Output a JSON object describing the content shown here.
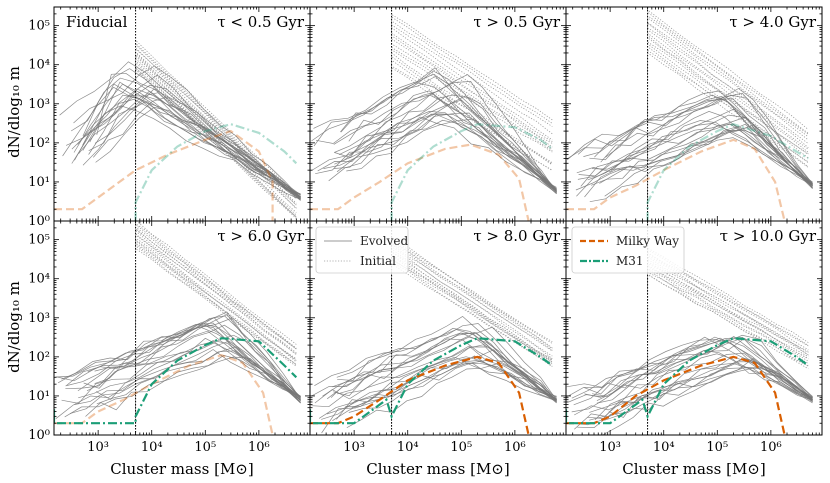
{
  "chart_data": {
    "type": "line",
    "layout": "2x3 grid of log-log panels",
    "xlabel": "Cluster mass [M⊙]",
    "ylabel": "dN/dlog₁₀ m",
    "xlim": [
      150,
      9000000
    ],
    "ylim": [
      1,
      300000
    ],
    "x_ticks": [
      {
        "v": 1000,
        "label": "10³"
      },
      {
        "v": 10000,
        "label": "10⁴"
      },
      {
        "v": 100000,
        "label": "10⁵"
      },
      {
        "v": 1000000,
        "label": "10⁶"
      }
    ],
    "y_ticks": [
      {
        "v": 1,
        "label": "10⁰"
      },
      {
        "v": 10,
        "label": "10¹"
      },
      {
        "v": 100,
        "label": "10²"
      },
      {
        "v": 1000,
        "label": "10³"
      },
      {
        "v": 10000,
        "label": "10⁴"
      },
      {
        "v": 100000,
        "label": "10⁵"
      }
    ],
    "mass_cut": 5000,
    "fiducial_label": "Fiducial",
    "colors": {
      "evolved": "#777777",
      "initial": "#9a9a9a",
      "mw": "#d95f02",
      "m31": "#1b9e77",
      "frame": "#000000"
    },
    "legends": [
      {
        "panel": 4,
        "entries": [
          {
            "label": "Evolved",
            "style": "evolved"
          },
          {
            "label": "Initial",
            "style": "initial"
          }
        ]
      },
      {
        "panel": 5,
        "entries": [
          {
            "label": "Milky Way",
            "style": "mw"
          },
          {
            "label": "M31",
            "style": "m31"
          }
        ]
      }
    ],
    "panels": [
      {
        "label": "τ < 0.5 Gyr",
        "faded": true,
        "evolved_peak": [
          5000,
          4000
        ],
        "evolved_spread": 0.55,
        "evolved_tail": 4,
        "evolved_low": 150,
        "initial_top": 40000,
        "initial_bottom": 7000,
        "initial_end": [
          5000000,
          5
        ],
        "mw": [
          [
            150,
            2
          ],
          [
            500,
            2
          ],
          [
            1000,
            4
          ],
          [
            3000,
            12
          ],
          [
            5000,
            20
          ],
          [
            20000,
            50
          ],
          [
            100000,
            120
          ],
          [
            300000,
            200
          ],
          [
            1000000,
            60
          ],
          [
            1800000,
            10
          ],
          [
            1800000,
            1
          ]
        ],
        "m31": [
          [
            5000,
            1
          ],
          [
            5000,
            3
          ],
          [
            10000,
            20
          ],
          [
            30000,
            80
          ],
          [
            100000,
            200
          ],
          [
            300000,
            300
          ],
          [
            1000000,
            180
          ],
          [
            3000000,
            60
          ],
          [
            5000000,
            30
          ]
        ]
      },
      {
        "label": "τ > 0.5 Gyr",
        "faded": true,
        "evolved_peak": [
          60000,
          2000
        ],
        "evolved_spread": 0.6,
        "evolved_tail": 6,
        "evolved_low": 150,
        "initial_top": 200000,
        "initial_bottom": 8000,
        "initial_end": [
          5000000,
          300
        ],
        "mw": [
          [
            150,
            2
          ],
          [
            500,
            2
          ],
          [
            1000,
            4
          ],
          [
            3000,
            10
          ],
          [
            10000,
            30
          ],
          [
            50000,
            70
          ],
          [
            150000,
            90
          ],
          [
            500000,
            50
          ],
          [
            1200000,
            12
          ],
          [
            1800000,
            1
          ]
        ],
        "m31": [
          [
            5000,
            1
          ],
          [
            5000,
            3
          ],
          [
            10000,
            20
          ],
          [
            30000,
            80
          ],
          [
            100000,
            200
          ],
          [
            200000,
            300
          ],
          [
            1000000,
            250
          ],
          [
            3000000,
            120
          ],
          [
            5000000,
            70
          ]
        ]
      },
      {
        "label": "τ > 4.0 Gyr",
        "faded": true,
        "evolved_peak": [
          150000,
          600
        ],
        "evolved_spread": 0.65,
        "evolved_tail": 8,
        "evolved_low": 150,
        "initial_top": 250000,
        "initial_bottom": 20000,
        "initial_end": [
          5000000,
          200
        ],
        "mw": [
          [
            150,
            2
          ],
          [
            500,
            2
          ],
          [
            1000,
            4
          ],
          [
            3000,
            8
          ],
          [
            10000,
            20
          ],
          [
            50000,
            60
          ],
          [
            200000,
            120
          ],
          [
            500000,
            70
          ],
          [
            1200000,
            10
          ],
          [
            1800000,
            1
          ]
        ],
        "m31": [
          [
            5000,
            1
          ],
          [
            5000,
            3
          ],
          [
            10000,
            20
          ],
          [
            30000,
            80
          ],
          [
            100000,
            200
          ],
          [
            200000,
            300
          ],
          [
            1000000,
            150
          ],
          [
            3000000,
            60
          ],
          [
            5000000,
            40
          ]
        ]
      },
      {
        "label": "τ > 6.0 Gyr",
        "faded": false,
        "mw_faded": true,
        "evolved_peak": [
          200000,
          400
        ],
        "evolved_spread": 0.6,
        "evolved_tail": 8,
        "evolved_low": 150,
        "initial_top": 300000,
        "initial_bottom": 60000,
        "initial_end": [
          5000000,
          200
        ],
        "mw": [
          [
            150,
            2
          ],
          [
            500,
            2
          ],
          [
            1000,
            4
          ],
          [
            3000,
            8
          ],
          [
            10000,
            20
          ],
          [
            50000,
            60
          ],
          [
            200000,
            110
          ],
          [
            500000,
            70
          ],
          [
            1200000,
            12
          ],
          [
            1800000,
            1
          ]
        ],
        "m31": [
          [
            150,
            2
          ],
          [
            150,
            5
          ],
          [
            150,
            2
          ],
          [
            5000,
            2
          ],
          [
            5000,
            3
          ],
          [
            10000,
            20
          ],
          [
            30000,
            80
          ],
          [
            100000,
            200
          ],
          [
            200000,
            300
          ],
          [
            1000000,
            250
          ],
          [
            3000000,
            60
          ],
          [
            5000000,
            30
          ]
        ]
      },
      {
        "label": "τ > 8.0 Gyr",
        "faded": false,
        "mw_faded": false,
        "evolved_peak": [
          200000,
          300
        ],
        "evolved_spread": 0.6,
        "evolved_tail": 8,
        "evolved_low": 150,
        "initial_top": 120000,
        "initial_bottom": 25000,
        "initial_end": [
          5000000,
          200
        ],
        "mw": [
          [
            150,
            2
          ],
          [
            500,
            2
          ],
          [
            1000,
            3
          ],
          [
            3000,
            8
          ],
          [
            10000,
            25
          ],
          [
            50000,
            60
          ],
          [
            200000,
            100
          ],
          [
            500000,
            70
          ],
          [
            1200000,
            12
          ],
          [
            1800000,
            1
          ]
        ],
        "m31": [
          [
            150,
            2
          ],
          [
            150,
            5
          ],
          [
            150,
            2
          ],
          [
            1000,
            2
          ],
          [
            1500,
            3
          ],
          [
            4000,
            8
          ],
          [
            5000,
            3
          ],
          [
            10000,
            20
          ],
          [
            30000,
            80
          ],
          [
            100000,
            200
          ],
          [
            200000,
            300
          ],
          [
            1000000,
            250
          ],
          [
            3000000,
            100
          ],
          [
            5000000,
            60
          ]
        ]
      },
      {
        "label": "τ > 10.0 Gyr",
        "faded": false,
        "mw_faded": false,
        "evolved_peak": [
          200000,
          180
        ],
        "evolved_spread": 0.6,
        "evolved_tail": 8,
        "evolved_low": 150,
        "initial_top": 60000,
        "initial_bottom": 12000,
        "initial_end": [
          5000000,
          200
        ],
        "mw": [
          [
            150,
            2
          ],
          [
            500,
            2
          ],
          [
            1000,
            3
          ],
          [
            3000,
            10
          ],
          [
            10000,
            25
          ],
          [
            50000,
            60
          ],
          [
            200000,
            100
          ],
          [
            500000,
            70
          ],
          [
            1200000,
            12
          ],
          [
            1800000,
            1
          ]
        ],
        "m31": [
          [
            150,
            2
          ],
          [
            150,
            5
          ],
          [
            150,
            2
          ],
          [
            1000,
            2
          ],
          [
            1500,
            3
          ],
          [
            4000,
            8
          ],
          [
            5000,
            3
          ],
          [
            10000,
            20
          ],
          [
            30000,
            80
          ],
          [
            100000,
            200
          ],
          [
            200000,
            300
          ],
          [
            1000000,
            250
          ],
          [
            3000000,
            100
          ],
          [
            5000000,
            60
          ]
        ]
      }
    ]
  }
}
